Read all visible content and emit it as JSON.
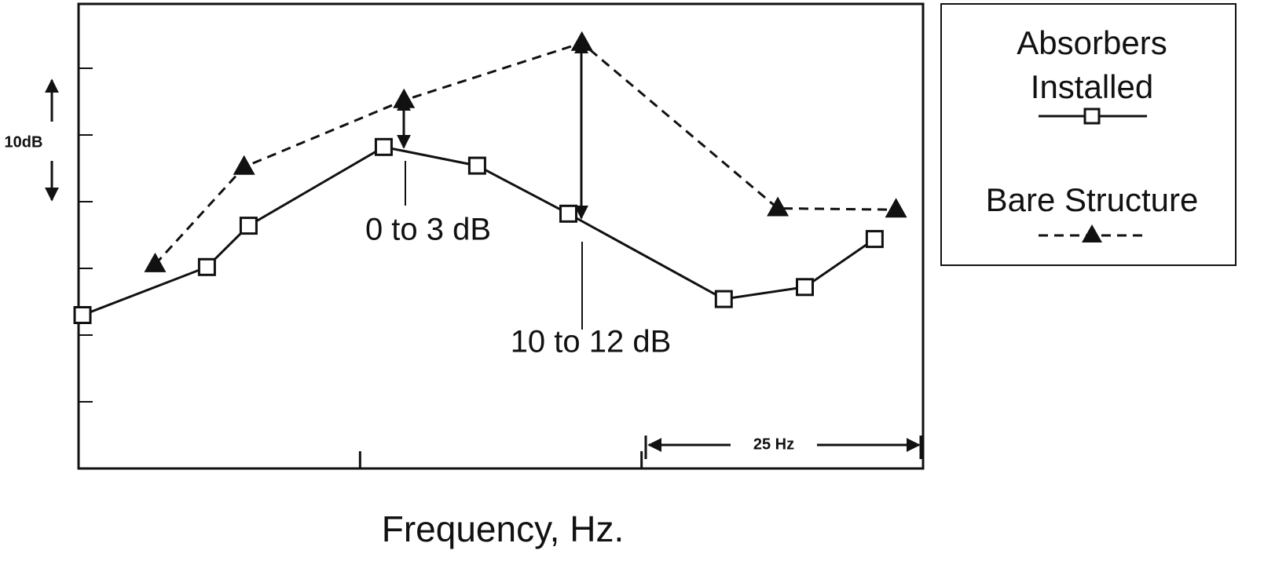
{
  "chart_data": {
    "type": "line",
    "xlabel": "Frequency, Hz.",
    "xlim": [
      0,
      75
    ],
    "xticks": [
      25,
      50
    ],
    "ylim": [
      0,
      35
    ],
    "yticks": [
      5,
      10,
      15,
      20,
      25,
      30
    ],
    "series": [
      {
        "name": "Absorbers Installed",
        "color": "#111111",
        "marker": "square",
        "dash": false,
        "x": [
          0.35,
          11.4,
          15.1,
          27.1,
          35.4,
          43.5,
          57.3,
          64.5,
          70.7
        ],
        "values": [
          11.5,
          15.1,
          18.2,
          24.1,
          22.7,
          19.1,
          12.7,
          13.6,
          17.2
        ]
      },
      {
        "name": "Bare Structure",
        "color": "#111111",
        "marker": "triangle",
        "dash": true,
        "x": [
          6.8,
          14.7,
          28.9,
          44.7,
          62.1,
          72.6
        ],
        "values": [
          15.3,
          22.6,
          27.6,
          31.9,
          19.5,
          19.4
        ]
      }
    ],
    "annotations": [
      "0 to 3 dB",
      "10 to 12 dB",
      "10dB",
      "25 Hz"
    ]
  }
}
